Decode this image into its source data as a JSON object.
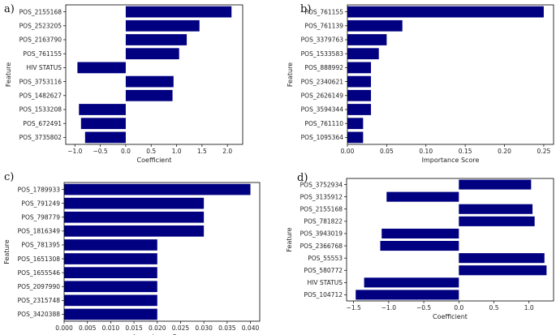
{
  "colors": {
    "bar": "#000080",
    "frame": "#000000",
    "text": "#222222"
  },
  "chart_data": [
    {
      "panel": "a)",
      "type": "bar",
      "orientation": "horizontal",
      "categories": [
        "POS_2155168",
        "POS_2523205",
        "POS_2163790",
        "POS_761155",
        "HIV STATUS",
        "POS_3753116",
        "POS_1482627",
        "POS_1533208",
        "POS_672491",
        "POS_3735802"
      ],
      "values": [
        2.08,
        1.45,
        1.2,
        1.05,
        -0.95,
        0.94,
        0.92,
        -0.92,
        -0.88,
        -0.8
      ],
      "xlabel": "Coefficient",
      "ylabel": "Feature",
      "xlim": [
        -1.18,
        2.3
      ],
      "xticks": [
        -1.0,
        -0.5,
        0.0,
        0.5,
        1.0,
        1.5,
        2.0
      ],
      "xtick_labels": [
        "−1.0",
        "−0.5",
        "0.0",
        "0.5",
        "1.0",
        "1.5",
        "2.0"
      ]
    },
    {
      "panel": "b)",
      "type": "bar",
      "orientation": "horizontal",
      "categories": [
        "POS_761155",
        "POS_761139",
        "POS_3379763",
        "POS_1533583",
        "POS_888992",
        "POS_2340621",
        "POS_2626149",
        "POS_3594344",
        "POS_761110",
        "POS_1095364"
      ],
      "values": [
        0.25,
        0.07,
        0.05,
        0.04,
        0.03,
        0.03,
        0.03,
        0.03,
        0.02,
        0.02
      ],
      "xlabel": "Importance Score",
      "ylabel": "Feature",
      "xlim": [
        0,
        0.2625
      ],
      "xticks": [
        0,
        0.05,
        0.1,
        0.15,
        0.2,
        0.25
      ],
      "xtick_labels": [
        "0.00",
        "0.05",
        "0.10",
        "0.15",
        "0.20",
        "0.25"
      ]
    },
    {
      "panel": "c)",
      "type": "bar",
      "orientation": "horizontal",
      "categories": [
        "POS_1789933",
        "POS_791249",
        "POS_798779",
        "POS_1816349",
        "POS_781395",
        "POS_1651308",
        "POS_1655546",
        "POS_2097990",
        "POS_2315748",
        "POS_3420388"
      ],
      "values": [
        0.04,
        0.03,
        0.03,
        0.03,
        0.02,
        0.02,
        0.02,
        0.02,
        0.02,
        0.02
      ],
      "xlabel": "Importance Score",
      "ylabel": "Feature",
      "xlim": [
        0,
        0.042
      ],
      "xticks": [
        0,
        0.005,
        0.01,
        0.015,
        0.02,
        0.025,
        0.03,
        0.035,
        0.04
      ],
      "xtick_labels": [
        "0.000",
        "0.005",
        "0.010",
        "0.015",
        "0.020",
        "0.025",
        "0.030",
        "0.035",
        "0.040"
      ]
    },
    {
      "panel": "d)",
      "type": "bar",
      "orientation": "horizontal",
      "categories": [
        "POS_3752934",
        "POS_3135912",
        "POS_2155168",
        "POS_781822",
        "POS_3943019",
        "POS_2366768",
        "POS_55553",
        "POS_580772",
        "HIV STATUS",
        "POS_104712"
      ],
      "values": [
        1.03,
        -1.03,
        1.05,
        1.08,
        -1.1,
        -1.12,
        1.22,
        1.25,
        -1.35,
        -1.47
      ],
      "xlabel": "Coefficient",
      "ylabel": "Feature",
      "xlim": [
        -1.6,
        1.35
      ],
      "xticks": [
        -1.5,
        -1.0,
        -0.5,
        0.0,
        0.5,
        1.0
      ],
      "xtick_labels": [
        "−1.5",
        "−1.0",
        "−0.5",
        "0.0",
        "0.5",
        "1.0"
      ]
    }
  ]
}
